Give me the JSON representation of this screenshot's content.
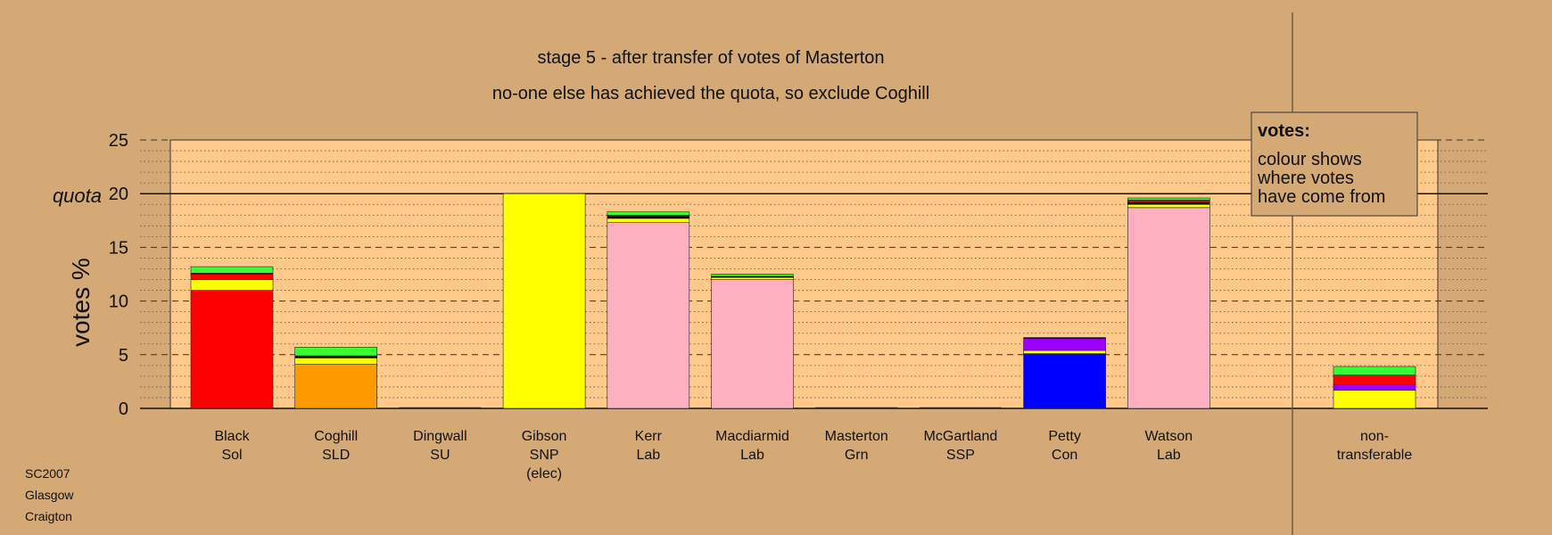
{
  "chart_data": {
    "type": "bar",
    "stacked": true,
    "title": "stage 5 - after transfer of votes of Masterton",
    "subtitle": "no-one else has achieved the quota, so exclude Coghill",
    "ylabel": "votes %",
    "ylim": [
      0,
      25
    ],
    "yticks": [
      0,
      5,
      10,
      15,
      20,
      25
    ],
    "quota": 20,
    "quota_label": "quota",
    "grid": true,
    "categories": [
      {
        "lines": [
          "Black",
          "Sol"
        ],
        "segments": [
          {
            "color": "#ff0000",
            "value": 11.0
          },
          {
            "color": "#ffff00",
            "value": 1.0
          },
          {
            "color": "#ff0000",
            "value": 0.5
          },
          {
            "color": "#8b0000",
            "value": 0.1
          },
          {
            "color": "#33ff33",
            "value": 0.6
          }
        ]
      },
      {
        "lines": [
          "Coghill",
          "SLD"
        ],
        "segments": [
          {
            "color": "#ff9900",
            "value": 4.1
          },
          {
            "color": "#ffff00",
            "value": 0.6
          },
          {
            "color": "#000000",
            "value": 0.2
          },
          {
            "color": "#33ff33",
            "value": 0.8
          }
        ]
      },
      {
        "lines": [
          "Dingwall",
          "SU"
        ],
        "segments": [
          {
            "color": "#888888",
            "value": 0.0
          }
        ]
      },
      {
        "lines": [
          "Gibson",
          "SNP",
          "(elec)"
        ],
        "segments": [
          {
            "color": "#ffff00",
            "value": 20.0
          }
        ]
      },
      {
        "lines": [
          "Kerr",
          "Lab"
        ],
        "segments": [
          {
            "color": "#ffb0c0",
            "value": 17.3
          },
          {
            "color": "#ffff00",
            "value": 0.4
          },
          {
            "color": "#000000",
            "value": 0.2
          },
          {
            "color": "#ff0000",
            "value": 0.1
          },
          {
            "color": "#33ff33",
            "value": 0.3
          }
        ]
      },
      {
        "lines": [
          "Macdiarmid",
          "Lab"
        ],
        "segments": [
          {
            "color": "#ffb0c0",
            "value": 12.0
          },
          {
            "color": "#ffff00",
            "value": 0.2
          },
          {
            "color": "#000000",
            "value": 0.1
          },
          {
            "color": "#33ff33",
            "value": 0.2
          }
        ]
      },
      {
        "lines": [
          "Masterton",
          "Grn"
        ],
        "segments": [
          {
            "color": "#888888",
            "value": 0.0
          }
        ]
      },
      {
        "lines": [
          "McGartland",
          "SSP"
        ],
        "segments": [
          {
            "color": "#888888",
            "value": 0.0
          }
        ]
      },
      {
        "lines": [
          "Petty",
          "Con"
        ],
        "segments": [
          {
            "color": "#0000ff",
            "value": 5.1
          },
          {
            "color": "#ffff00",
            "value": 0.3
          },
          {
            "color": "#9900ff",
            "value": 1.1
          },
          {
            "color": "#000000",
            "value": 0.1
          }
        ]
      },
      {
        "lines": [
          "Watson",
          "Lab"
        ],
        "segments": [
          {
            "color": "#ffb0c0",
            "value": 18.7
          },
          {
            "color": "#ffff00",
            "value": 0.3
          },
          {
            "color": "#000000",
            "value": 0.2
          },
          {
            "color": "#ff0000",
            "value": 0.2
          },
          {
            "color": "#33ff33",
            "value": 0.2
          }
        ]
      }
    ],
    "nontransferable": {
      "lines": [
        "non-",
        "transferable"
      ],
      "segments": [
        {
          "color": "#ffff00",
          "value": 1.7
        },
        {
          "color": "#9900ff",
          "value": 0.5
        },
        {
          "color": "#ff0000",
          "value": 0.9
        },
        {
          "color": "#33ff33",
          "value": 0.8
        }
      ]
    },
    "legend": {
      "title": "votes:",
      "lines": [
        "colour shows",
        "where votes",
        "have come from"
      ],
      "placement": "top-right"
    }
  },
  "corner_note": [
    "SC2007",
    "Glasgow",
    "Craigton"
  ],
  "colors": {
    "background": "#d4a976",
    "plot_area": "#ffc98c",
    "frame": "#333333"
  }
}
